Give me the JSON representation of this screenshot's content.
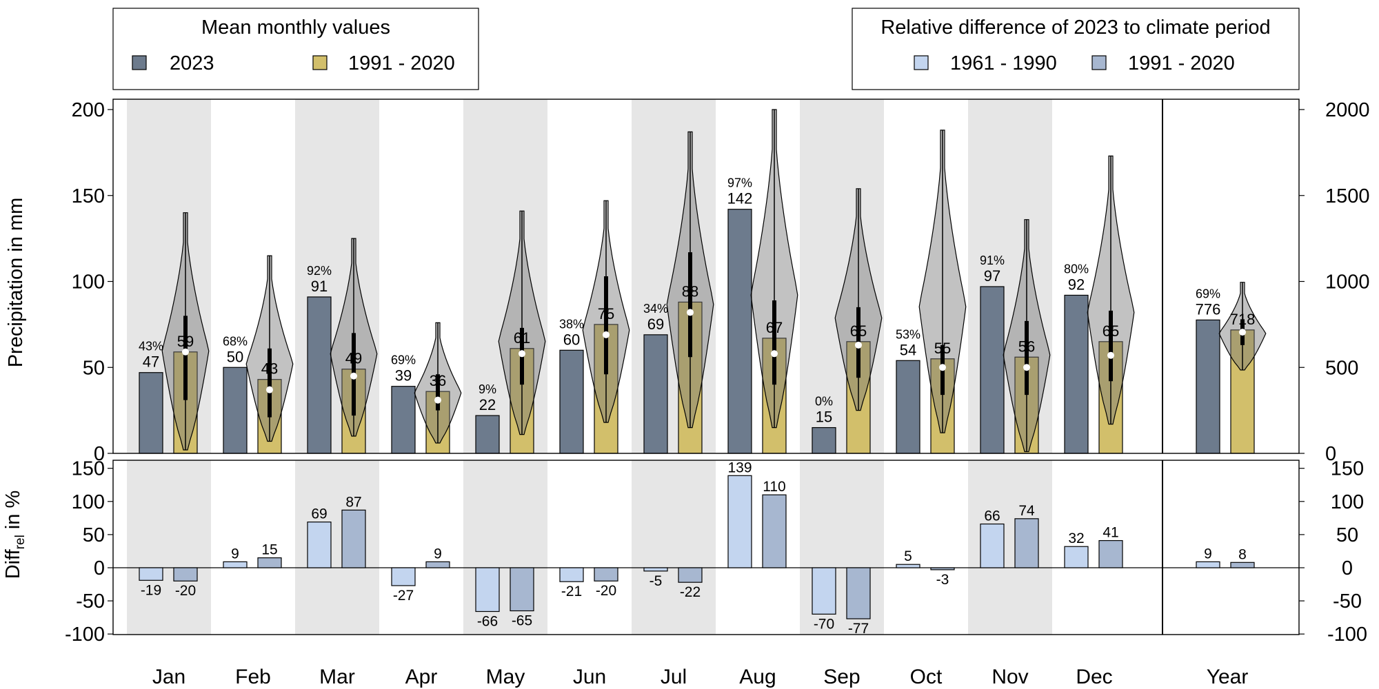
{
  "legend_left": {
    "title": "Mean monthly values",
    "items": [
      {
        "label": "2023",
        "color": "#6d7b8d"
      },
      {
        "label": "1991 - 2020",
        "color": "#d2bf6b"
      }
    ]
  },
  "legend_right": {
    "title": "Relative difference of 2023 to climate period",
    "items": [
      {
        "label": "1961 - 1990",
        "color": "#c3d5ef"
      },
      {
        "label": "1991 - 2020",
        "color": "#a7b7d0"
      }
    ]
  },
  "axes": {
    "top_ylabel": "Precipitation in mm",
    "bottom_ylabel_main": "Diff",
    "bottom_ylabel_sub": "rel",
    "bottom_ylabel_tail": " in %",
    "top_left_ticks": [
      "0",
      "50",
      "100",
      "150",
      "200"
    ],
    "top_right_ticks": [
      "0",
      "500",
      "1000",
      "1500",
      "2000"
    ],
    "bottom_ticks": [
      "-100",
      "-50",
      "0",
      "50",
      "100",
      "150"
    ]
  },
  "chart_data": [
    {
      "type": "bar",
      "panel": "top",
      "ylabel": "Precipitation in mm",
      "ylim": [
        0,
        200
      ],
      "ylim_right_year": [
        0,
        2000
      ],
      "categories": [
        "Jan",
        "Feb",
        "Mar",
        "Apr",
        "May",
        "Jun",
        "Jul",
        "Aug",
        "Sep",
        "Oct",
        "Nov",
        "Dec",
        "Year"
      ],
      "series": [
        {
          "name": "2023",
          "values": [
            47,
            50,
            91,
            39,
            22,
            60,
            69,
            142,
            15,
            54,
            97,
            92,
            776
          ],
          "percentiles": [
            "43%",
            "68%",
            "92%",
            "69%",
            "9%",
            "38%",
            "34%",
            "97%",
            "0%",
            "53%",
            "91%",
            "80%",
            "69%"
          ]
        },
        {
          "name": "1991 - 2020",
          "values": [
            59,
            43,
            49,
            36,
            61,
            75,
            88,
            67,
            65,
            55,
            56,
            65,
            718
          ]
        }
      ],
      "violins": [
        {
          "min": 2,
          "max": 140,
          "q1": 31,
          "q3": 80,
          "median": 59
        },
        {
          "min": 7,
          "max": 115,
          "q1": 21,
          "q3": 61,
          "median": 37
        },
        {
          "min": 10,
          "max": 125,
          "q1": 22,
          "q3": 70,
          "median": 45
        },
        {
          "min": 6,
          "max": 76,
          "q1": 25,
          "q3": 46,
          "median": 31
        },
        {
          "min": 11,
          "max": 141,
          "q1": 40,
          "q3": 73,
          "median": 58
        },
        {
          "min": 18,
          "max": 147,
          "q1": 46,
          "q3": 103,
          "median": 69
        },
        {
          "min": 15,
          "max": 187,
          "q1": 56,
          "q3": 117,
          "median": 82
        },
        {
          "min": 15,
          "max": 200,
          "q1": 40,
          "q3": 89,
          "median": 58
        },
        {
          "min": 25,
          "max": 154,
          "q1": 44,
          "q3": 85,
          "median": 63
        },
        {
          "min": 12,
          "max": 188,
          "q1": 34,
          "q3": 63,
          "median": 50
        },
        {
          "min": 1,
          "max": 136,
          "q1": 34,
          "q3": 77,
          "median": 50
        },
        {
          "min": 17,
          "max": 173,
          "q1": 42,
          "q3": 83,
          "median": 57
        },
        {
          "min": 485,
          "max": 995,
          "q1": 630,
          "q3": 780,
          "median": 705
        }
      ],
      "grid": false,
      "legend": "top"
    },
    {
      "type": "bar",
      "panel": "bottom",
      "ylabel": "Diffrel in %",
      "ylim": [
        -100,
        160
      ],
      "categories": [
        "Jan",
        "Feb",
        "Mar",
        "Apr",
        "May",
        "Jun",
        "Jul",
        "Aug",
        "Sep",
        "Oct",
        "Nov",
        "Dec",
        "Year"
      ],
      "series": [
        {
          "name": "1961 - 1990",
          "values": [
            -19,
            9,
            69,
            -27,
            -66,
            -21,
            -5,
            139,
            -70,
            5,
            66,
            32,
            9
          ]
        },
        {
          "name": "1991 - 2020",
          "values": [
            -20,
            15,
            87,
            9,
            -65,
            -20,
            -22,
            110,
            -77,
            -3,
            74,
            41,
            8
          ]
        }
      ],
      "grid": false,
      "legend": "top-right"
    }
  ]
}
